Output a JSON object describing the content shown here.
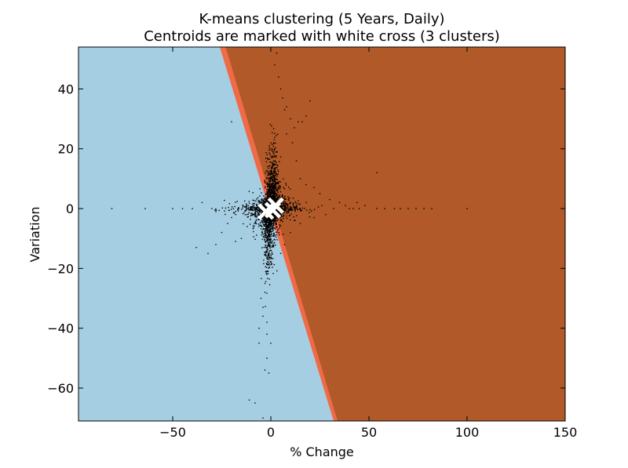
{
  "chart_data": {
    "type": "scatter",
    "title": "K-means clustering (5 Years, Daily)",
    "subtitle": "Centroids are marked with white cross (3 clusters)",
    "xlabel": "% Change",
    "ylabel": "Variation",
    "xlim": [
      -98,
      150
    ],
    "ylim": [
      -71,
      54
    ],
    "xticks": [
      -50,
      0,
      50,
      100,
      150
    ],
    "yticks": [
      -60,
      -40,
      -20,
      0,
      20,
      40
    ],
    "xtick_labels": [
      "−50",
      "0",
      "50",
      "100",
      "150"
    ],
    "ytick_labels": [
      "−60",
      "−40",
      "−20",
      "0",
      "20",
      "40"
    ],
    "grid": false,
    "colors": {
      "region_left": "#a6cee3",
      "region_boundary": "#ef6a47",
      "region_right": "#b15928",
      "points": "#000000",
      "centroid": "#ffffff"
    },
    "region_boundaries": [
      {
        "name": "left-boundary",
        "top_x": -26,
        "bottom_x": 32
      },
      {
        "name": "right-boundary",
        "top_x": -23,
        "bottom_x": 34
      }
    ],
    "centroids": [
      {
        "x": -2.5,
        "y": -1
      },
      {
        "x": 1,
        "y": -0.5
      },
      {
        "x": 2.5,
        "y": 1
      }
    ],
    "outlier_points": [
      [
        -81,
        0
      ],
      [
        -64,
        0
      ],
      [
        -50,
        0
      ],
      [
        -45,
        0
      ],
      [
        -40,
        0
      ],
      [
        -35,
        2
      ],
      [
        -30,
        0
      ],
      [
        -28,
        -1
      ],
      [
        -38,
        -13
      ],
      [
        -32,
        -15
      ],
      [
        -28,
        -12
      ],
      [
        -25,
        -8
      ],
      [
        -22,
        -5
      ],
      [
        -20,
        -3
      ],
      [
        -20,
        29
      ],
      [
        -18,
        -11
      ],
      [
        -15,
        -10
      ],
      [
        -12,
        -6
      ],
      [
        -11,
        -64
      ],
      [
        -8,
        -65
      ],
      [
        -6,
        -45
      ],
      [
        -6,
        -40
      ],
      [
        -5,
        -30
      ],
      [
        -4,
        -33
      ],
      [
        -4,
        -36
      ],
      [
        -3,
        -25
      ],
      [
        -3,
        -28
      ],
      [
        -2,
        -42
      ],
      [
        -2,
        -50
      ],
      [
        -3,
        -54
      ],
      [
        -4,
        -70
      ],
      [
        -1,
        -55
      ],
      [
        0,
        -45
      ],
      [
        -2,
        -38
      ],
      [
        2,
        48
      ],
      [
        3,
        52
      ],
      [
        4,
        44
      ],
      [
        5,
        40
      ],
      [
        6,
        37
      ],
      [
        7,
        33
      ],
      [
        8,
        34
      ],
      [
        10,
        30
      ],
      [
        12,
        27
      ],
      [
        14,
        29
      ],
      [
        16,
        29
      ],
      [
        18,
        31
      ],
      [
        20,
        36
      ],
      [
        8,
        25
      ],
      [
        11,
        22
      ],
      [
        13,
        16
      ],
      [
        15,
        10
      ],
      [
        18,
        8
      ],
      [
        22,
        7
      ],
      [
        25,
        5
      ],
      [
        30,
        3
      ],
      [
        35,
        2
      ],
      [
        40,
        0
      ],
      [
        45,
        0
      ],
      [
        48,
        1
      ],
      [
        54,
        0
      ],
      [
        54,
        12
      ],
      [
        58,
        0
      ],
      [
        63,
        0
      ],
      [
        66,
        0
      ],
      [
        70,
        0
      ],
      [
        74,
        0
      ],
      [
        78,
        0
      ],
      [
        82,
        0
      ],
      [
        100,
        0
      ],
      [
        28,
        -2
      ],
      [
        22,
        -3
      ],
      [
        15,
        -5
      ],
      [
        10,
        -8
      ],
      [
        7,
        -12
      ],
      [
        5,
        -15
      ],
      [
        12,
        -4
      ],
      [
        18,
        2
      ],
      [
        26,
        1
      ],
      [
        32,
        0
      ],
      [
        38,
        1
      ],
      [
        42,
        0
      ],
      [
        44,
        2
      ]
    ]
  }
}
